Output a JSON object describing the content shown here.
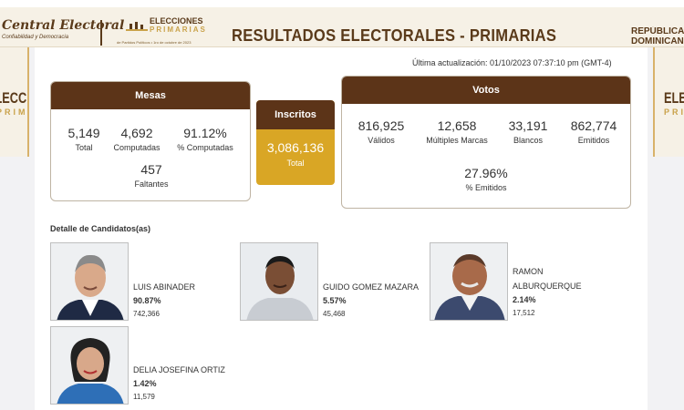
{
  "header": {
    "org_name": "Central Electoral",
    "org_tagline": "Confiabilidad y Democracia",
    "elections_word": "ELECCIONES",
    "elections_word2": "PRIMARIAS",
    "elections_date": "de Partidos Políticos • 1ro de octubre de 2023",
    "title": "RESULTADOS ELECTORALES - PRIMARIAS",
    "country_line1": "REPÚBLICA",
    "country_line2": "DOMINICANA"
  },
  "sides": {
    "word": "ELECCIONES",
    "word2": "PRIMARIAS"
  },
  "last_update": "Última actualización: 01/10/2023 07:37:10 pm (GMT-4)",
  "mesas": {
    "title": "Mesas",
    "total": {
      "value": "5,149",
      "label": "Total"
    },
    "computadas": {
      "value": "4,692",
      "label": "Computadas"
    },
    "pct_computadas": {
      "value": "91.12%",
      "label": "% Computadas"
    },
    "faltantes": {
      "value": "457",
      "label": "Faltantes"
    }
  },
  "inscritos": {
    "title": "Inscritos",
    "value": "3,086,136",
    "label": "Total"
  },
  "votos": {
    "title": "Votos",
    "validos": {
      "value": "816,925",
      "label": "Válidos"
    },
    "multiples": {
      "value": "12,658",
      "label": "Múltiples Marcas"
    },
    "blancos": {
      "value": "33,191",
      "label": "Blancos"
    },
    "emitidos": {
      "value": "862,774",
      "label": "Emitidos"
    },
    "pct_emitidos": {
      "value": "27.96%",
      "label": "% Emitidos"
    }
  },
  "candidates_title": "Detalle de Candidatos(as)",
  "candidates": [
    {
      "name": "LUIS ABINADER",
      "name2": "",
      "pct": "90.87%",
      "votes": "742,366"
    },
    {
      "name": "GUIDO GOMEZ MAZARA",
      "name2": "",
      "pct": "5.57%",
      "votes": "45,468"
    },
    {
      "name": "RAMON",
      "name2": "ALBURQUERQUE",
      "pct": "2.14%",
      "votes": "17,512"
    },
    {
      "name": "DELIA JOSEFINA ORTIZ",
      "name2": "",
      "pct": "1.42%",
      "votes": "11,579"
    }
  ],
  "colors": {
    "brown": "#5c3418",
    "gold": "#d9a625",
    "cream": "#f6f1e6"
  }
}
